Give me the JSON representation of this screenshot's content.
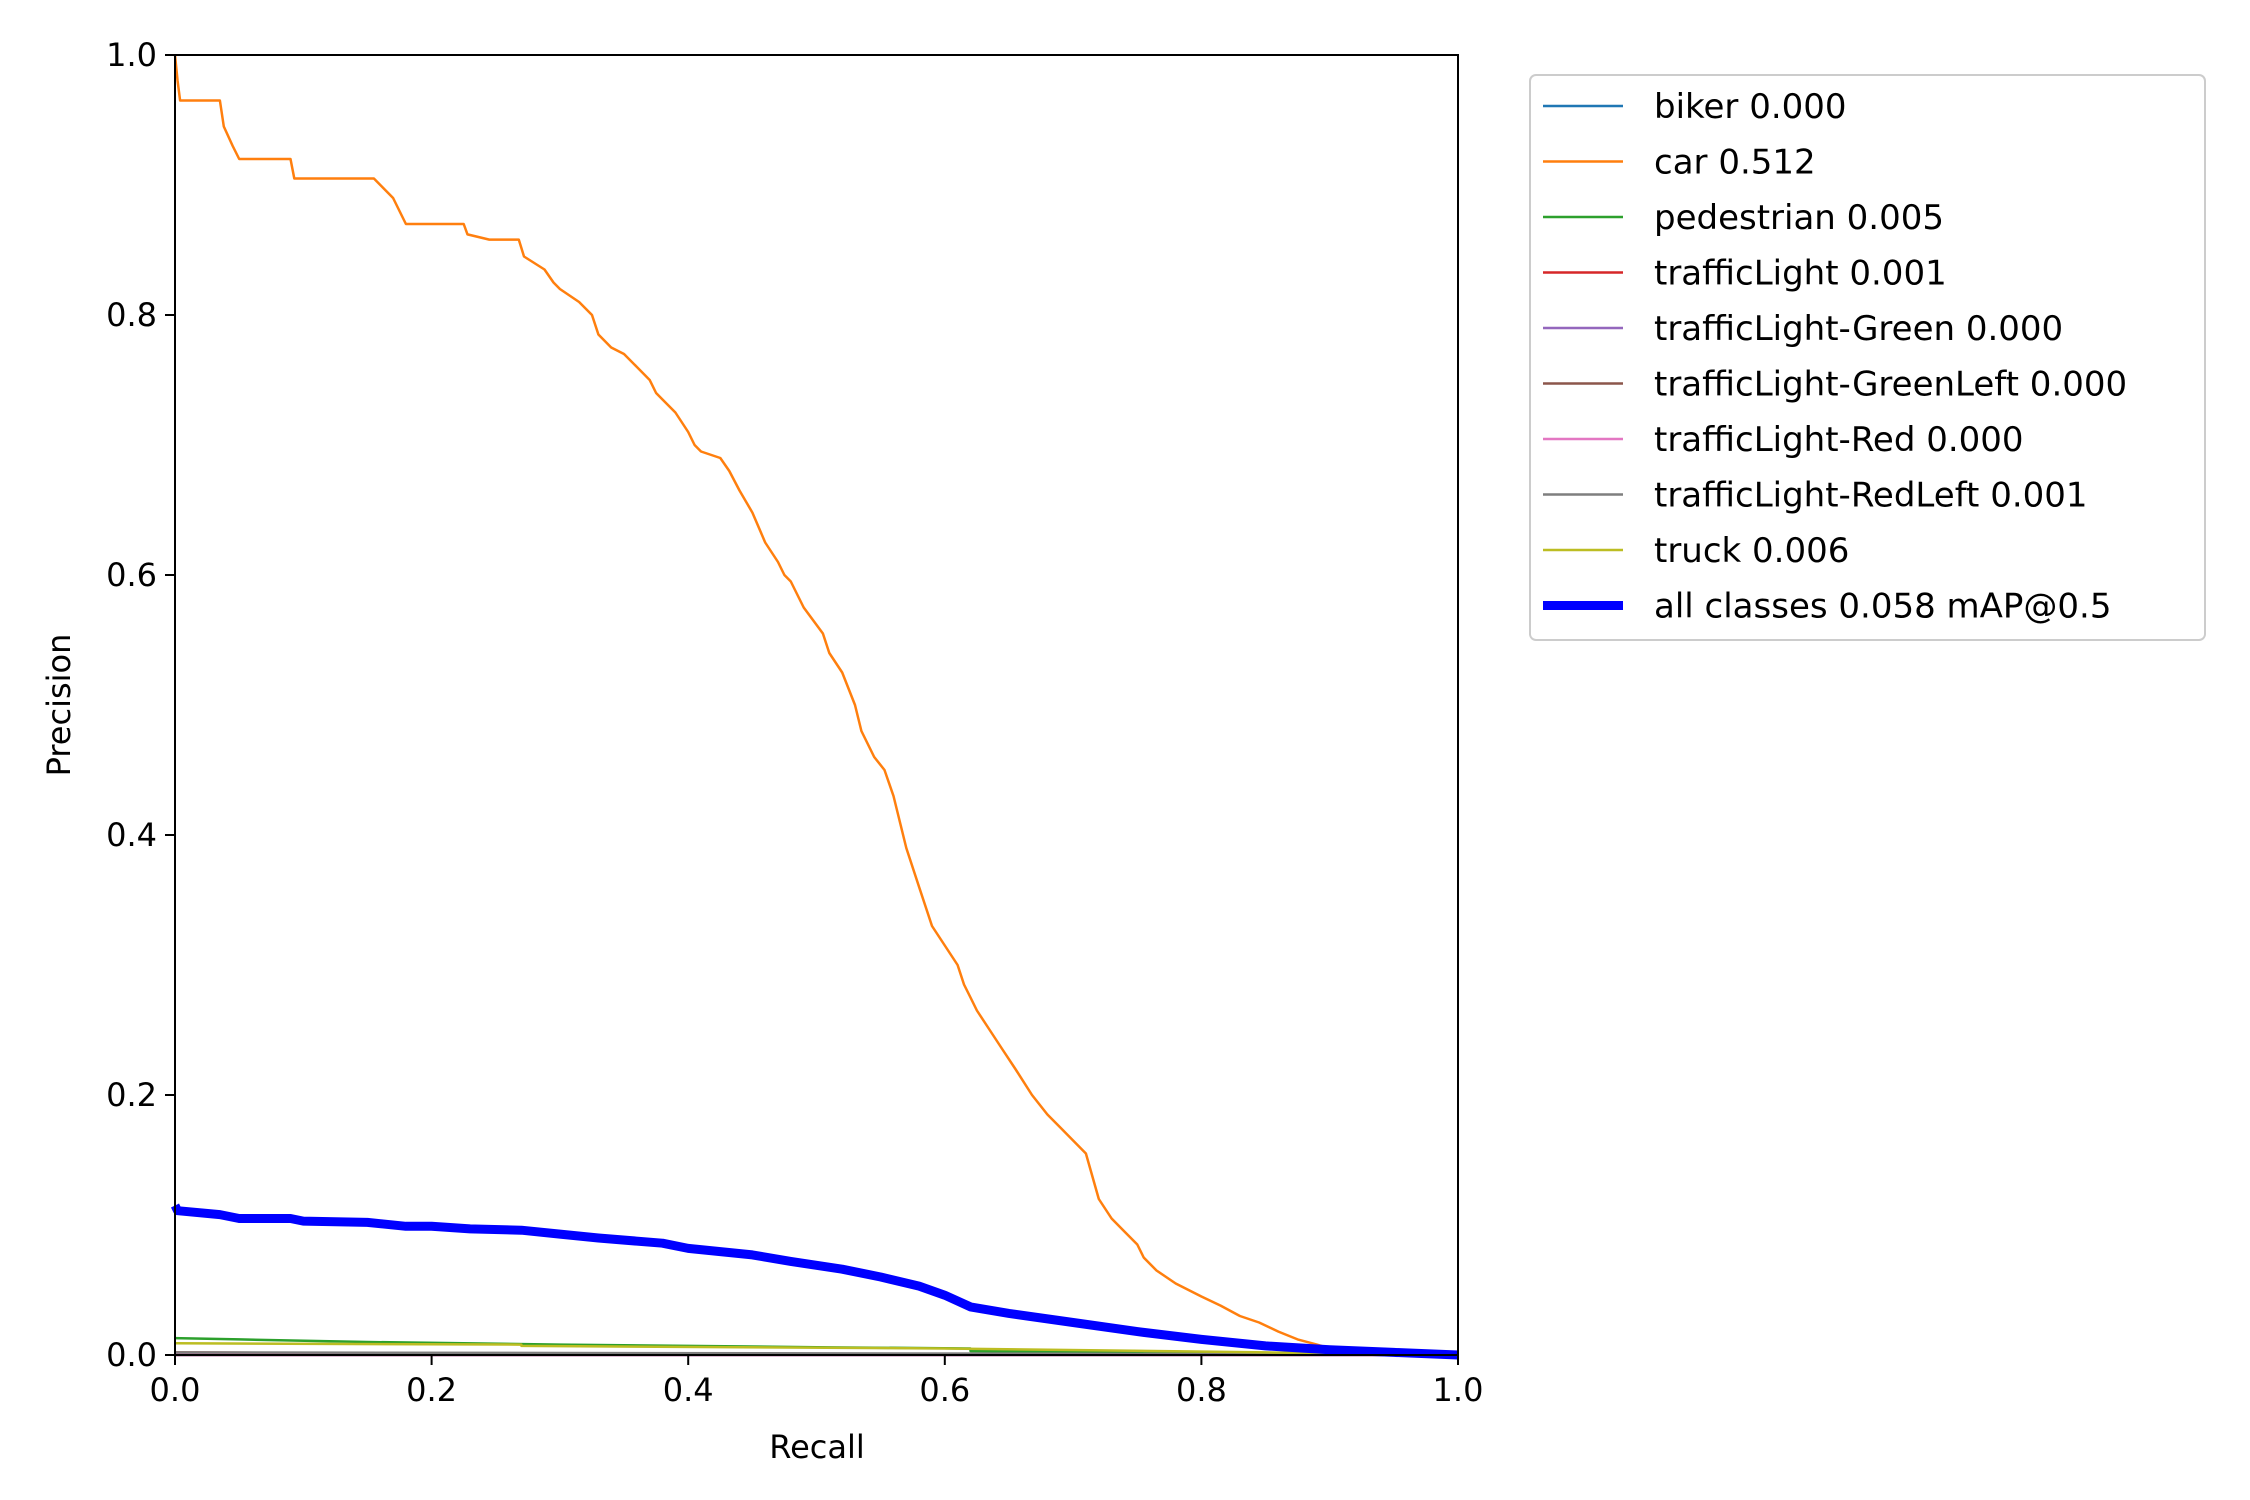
{
  "chart_data": {
    "type": "line",
    "xlabel": "Recall",
    "ylabel": "Precision",
    "xlim": [
      0.0,
      1.0
    ],
    "ylim": [
      0.0,
      1.0
    ],
    "grid": false,
    "legend_placement": "outside-top-right",
    "xticks": [
      "0.0",
      "0.2",
      "0.4",
      "0.6",
      "0.8",
      "1.0"
    ],
    "yticks": [
      "0.0",
      "0.2",
      "0.4",
      "0.6",
      "0.8",
      "1.0"
    ],
    "series": [
      {
        "name": "biker 0.000",
        "color": "#1f77b4",
        "emphasis": false,
        "x": [
          0.0,
          1.0
        ],
        "y": [
          0.0,
          0.0
        ]
      },
      {
        "name": "car 0.512",
        "color": "#ff7f0e",
        "emphasis": false,
        "x": [
          0.0,
          0.002,
          0.004,
          0.035,
          0.038,
          0.045,
          0.05,
          0.09,
          0.093,
          0.155,
          0.16,
          0.17,
          0.175,
          0.18,
          0.225,
          0.228,
          0.245,
          0.268,
          0.272,
          0.288,
          0.295,
          0.3,
          0.315,
          0.325,
          0.33,
          0.34,
          0.35,
          0.36,
          0.37,
          0.375,
          0.38,
          0.39,
          0.4,
          0.405,
          0.41,
          0.425,
          0.432,
          0.44,
          0.45,
          0.46,
          0.47,
          0.475,
          0.48,
          0.49,
          0.505,
          0.51,
          0.52,
          0.53,
          0.535,
          0.545,
          0.553,
          0.56,
          0.565,
          0.57,
          0.58,
          0.59,
          0.6,
          0.61,
          0.615,
          0.62,
          0.625,
          0.635,
          0.645,
          0.655,
          0.668,
          0.68,
          0.69,
          0.7,
          0.71,
          0.72,
          0.73,
          0.74,
          0.75,
          0.755,
          0.765,
          0.78,
          0.8,
          0.815,
          0.83,
          0.845,
          0.86,
          0.875,
          0.89,
          0.9,
          1.0
        ],
        "y": [
          1.0,
          0.98,
          0.965,
          0.965,
          0.945,
          0.93,
          0.92,
          0.92,
          0.905,
          0.905,
          0.9,
          0.89,
          0.88,
          0.87,
          0.87,
          0.862,
          0.858,
          0.858,
          0.845,
          0.835,
          0.825,
          0.82,
          0.81,
          0.8,
          0.785,
          0.775,
          0.77,
          0.76,
          0.75,
          0.74,
          0.735,
          0.725,
          0.71,
          0.7,
          0.695,
          0.69,
          0.68,
          0.665,
          0.648,
          0.625,
          0.61,
          0.6,
          0.595,
          0.575,
          0.555,
          0.54,
          0.525,
          0.5,
          0.48,
          0.46,
          0.45,
          0.43,
          0.41,
          0.39,
          0.36,
          0.33,
          0.315,
          0.3,
          0.285,
          0.275,
          0.265,
          0.25,
          0.235,
          0.22,
          0.2,
          0.185,
          0.175,
          0.165,
          0.155,
          0.12,
          0.105,
          0.095,
          0.085,
          0.075,
          0.065,
          0.055,
          0.045,
          0.038,
          0.03,
          0.025,
          0.018,
          0.012,
          0.008,
          0.005,
          0.0
        ]
      },
      {
        "name": "pedestrian 0.005",
        "color": "#2ca02c",
        "emphasis": false,
        "x": [
          0.0,
          0.05,
          0.15,
          0.3,
          0.5,
          0.62,
          0.62,
          0.8,
          1.0
        ],
        "y": [
          0.013,
          0.012,
          0.01,
          0.008,
          0.006,
          0.005,
          0.003,
          0.002,
          0.0
        ]
      },
      {
        "name": "trafficLight 0.001",
        "color": "#d62728",
        "emphasis": false,
        "x": [
          0.0,
          0.2,
          0.6,
          1.0
        ],
        "y": [
          0.002,
          0.001,
          0.001,
          0.0
        ]
      },
      {
        "name": "trafficLight-Green 0.000",
        "color": "#9467bd",
        "emphasis": false,
        "x": [
          0.0,
          1.0
        ],
        "y": [
          0.0,
          0.0
        ]
      },
      {
        "name": "trafficLight-GreenLeft 0.000",
        "color": "#8c564b",
        "emphasis": false,
        "x": [
          0.0,
          1.0
        ],
        "y": [
          0.0,
          0.0
        ]
      },
      {
        "name": "trafficLight-Red 0.000",
        "color": "#e377c2",
        "emphasis": false,
        "x": [
          0.0,
          1.0
        ],
        "y": [
          0.0,
          0.0
        ]
      },
      {
        "name": "trafficLight-RedLeft 0.001",
        "color": "#7f7f7f",
        "emphasis": false,
        "x": [
          0.0,
          0.3,
          0.7,
          1.0
        ],
        "y": [
          0.002,
          0.0015,
          0.001,
          0.0
        ]
      },
      {
        "name": "truck 0.006",
        "color": "#bcbd22",
        "emphasis": false,
        "x": [
          0.0,
          0.27,
          0.27,
          0.6,
          0.85,
          1.0
        ],
        "y": [
          0.009,
          0.008,
          0.007,
          0.005,
          0.002,
          0.0
        ]
      },
      {
        "name": "all classes 0.058 mAP@0.5",
        "color": "#0000ff",
        "emphasis": true,
        "x": [
          0.0,
          0.002,
          0.035,
          0.05,
          0.09,
          0.1,
          0.15,
          0.18,
          0.2,
          0.23,
          0.27,
          0.3,
          0.33,
          0.38,
          0.4,
          0.45,
          0.48,
          0.5,
          0.52,
          0.55,
          0.58,
          0.6,
          0.62,
          0.65,
          0.7,
          0.75,
          0.8,
          0.85,
          0.9,
          0.95,
          1.0
        ],
        "y": [
          0.115,
          0.111,
          0.108,
          0.105,
          0.105,
          0.103,
          0.102,
          0.099,
          0.099,
          0.097,
          0.096,
          0.093,
          0.09,
          0.086,
          0.082,
          0.077,
          0.072,
          0.069,
          0.066,
          0.06,
          0.053,
          0.046,
          0.037,
          0.032,
          0.025,
          0.018,
          0.012,
          0.007,
          0.004,
          0.002,
          0.0
        ]
      }
    ]
  }
}
